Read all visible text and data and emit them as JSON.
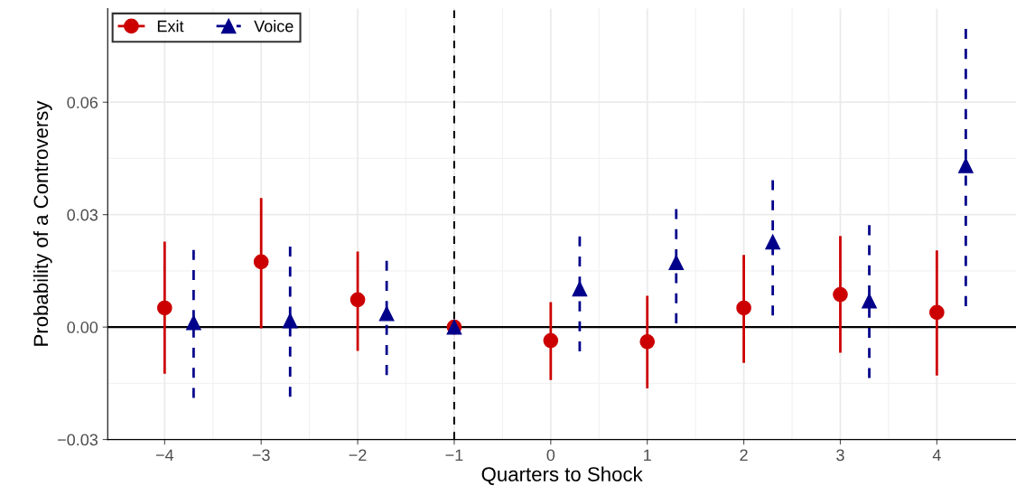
{
  "chart_data": {
    "type": "scatter",
    "xlabel": "Quarters to Shock",
    "ylabel": "Probability of a Controversy",
    "xlim": [
      -4.59,
      4.82
    ],
    "ylim": [
      -0.03,
      0.085
    ],
    "xticks": [
      {
        "value": -4,
        "label": "−4"
      },
      {
        "value": -3,
        "label": "−3"
      },
      {
        "value": -2,
        "label": "−2"
      },
      {
        "value": -1,
        "label": "−1"
      },
      0,
      1,
      2,
      3,
      4
    ],
    "yticks": [
      {
        "value": -0.03,
        "label": "−0.03"
      },
      {
        "value": 0,
        "label": "0.00"
      },
      {
        "value": 0.03,
        "label": "0.03"
      },
      {
        "value": 0.06,
        "label": "0.06"
      }
    ],
    "grid": true,
    "legend": "top left",
    "ref_lines": [
      {
        "axis": "y",
        "value": 0,
        "color": "#000000",
        "line_style": "solid"
      },
      {
        "axis": "x",
        "value": -1,
        "color": "#000000",
        "line_style": "dashed"
      }
    ],
    "series": [
      {
        "name": "Exit",
        "color": "#cc0000",
        "marker": "circle",
        "line_style": "solid",
        "x": [
          -4,
          -3,
          -2,
          -1,
          0,
          1,
          2,
          3,
          4
        ],
        "values": [
          0.0051,
          0.0174,
          0.0073,
          0,
          -0.0036,
          -0.0039,
          0.0051,
          0.0087,
          0.0039
        ],
        "errors": [
          [
            -0.0121,
            0.0225
          ],
          [
            0.0,
            0.0341
          ],
          [
            -0.006,
            0.0198
          ],
          null,
          [
            -0.0138,
            0.0063
          ],
          [
            -0.016,
            0.008
          ],
          [
            -0.0092,
            0.0189
          ],
          [
            -0.0065,
            0.024
          ],
          [
            -0.0126,
            0.0201
          ]
        ]
      },
      {
        "name": "Voice",
        "color": "#00008b",
        "marker": "triangle",
        "line_style": "dashed",
        "x": [
          -3.7,
          -2.7,
          -1.7,
          -1,
          0.3,
          1.3,
          2.3,
          3.3,
          4.3
        ],
        "values": [
          0.0012,
          0.0017,
          0.0036,
          0,
          0.0102,
          0.0172,
          0.0227,
          0.007,
          0.0431
        ],
        "errors": [
          [
            -0.0189,
            0.0206
          ],
          [
            -0.0186,
            0.0215
          ],
          [
            -0.0128,
            0.0177
          ],
          null,
          [
            -0.0065,
            0.0242
          ],
          [
            0.001,
            0.0315
          ],
          [
            0.0031,
            0.0392
          ],
          [
            -0.0136,
            0.0272
          ],
          [
            0.0056,
            0.0796
          ]
        ]
      }
    ]
  }
}
